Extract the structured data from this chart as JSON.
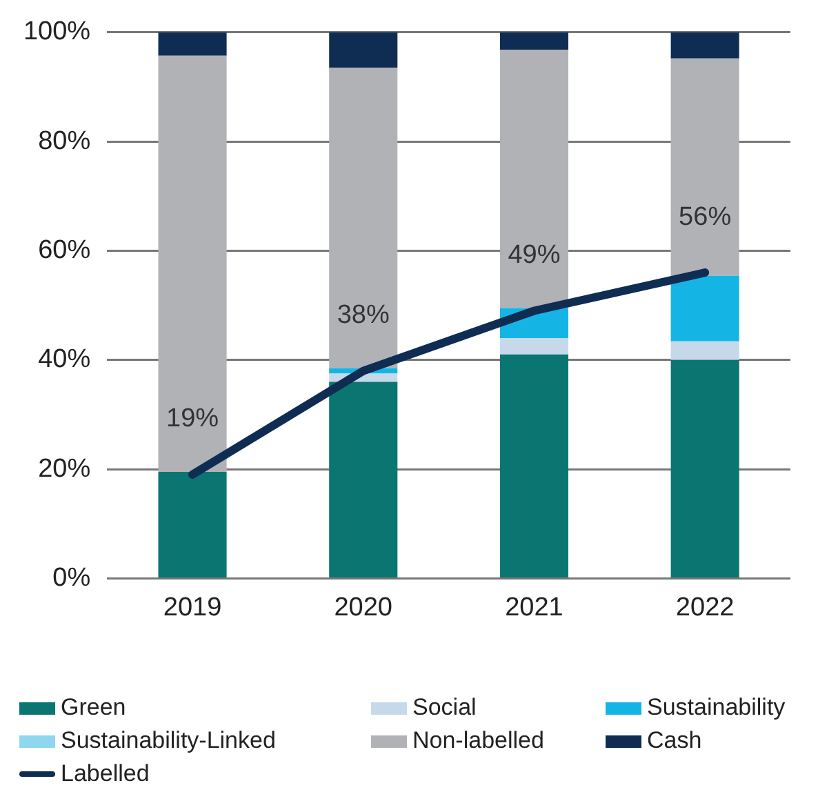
{
  "chart_data": {
    "type": "bar",
    "stacked": true,
    "categories": [
      "2019",
      "2020",
      "2021",
      "2022"
    ],
    "series": [
      {
        "name": "Green",
        "color": "#0a7571",
        "values": [
          19.5,
          36,
          41,
          40
        ]
      },
      {
        "name": "Social",
        "color": "#c5d9ea",
        "values": [
          0,
          1.5,
          3,
          3.4
        ]
      },
      {
        "name": "Sustainability",
        "color": "#14b5e5",
        "values": [
          0,
          1,
          5.5,
          12
        ]
      },
      {
        "name": "Sustainability-Linked",
        "color": "#8fd7f1",
        "values": [
          0,
          0,
          0,
          0
        ]
      },
      {
        "name": "Non-labelled",
        "color": "#b1b2b6",
        "values": [
          76.2,
          55,
          47.3,
          39.8
        ]
      },
      {
        "name": "Cash",
        "color": "#0f2d52",
        "values": [
          4.3,
          6.5,
          3.2,
          4.8
        ]
      },
      {
        "name": "Labelled",
        "type": "line",
        "color": "#0f2d52",
        "values": [
          19,
          38,
          49,
          56
        ],
        "value_labels": [
          "19%",
          "38%",
          "49%",
          "56%"
        ]
      }
    ],
    "ylim": [
      0,
      100
    ],
    "yticks": [
      {
        "value": 0,
        "label": "0%"
      },
      {
        "value": 20,
        "label": "20%"
      },
      {
        "value": 40,
        "label": "40%"
      },
      {
        "value": 60,
        "label": "60%"
      },
      {
        "value": 80,
        "label": "80%"
      },
      {
        "value": 100,
        "label": "100%"
      }
    ],
    "grid": "y",
    "legend": "bottom",
    "marker": "none"
  }
}
